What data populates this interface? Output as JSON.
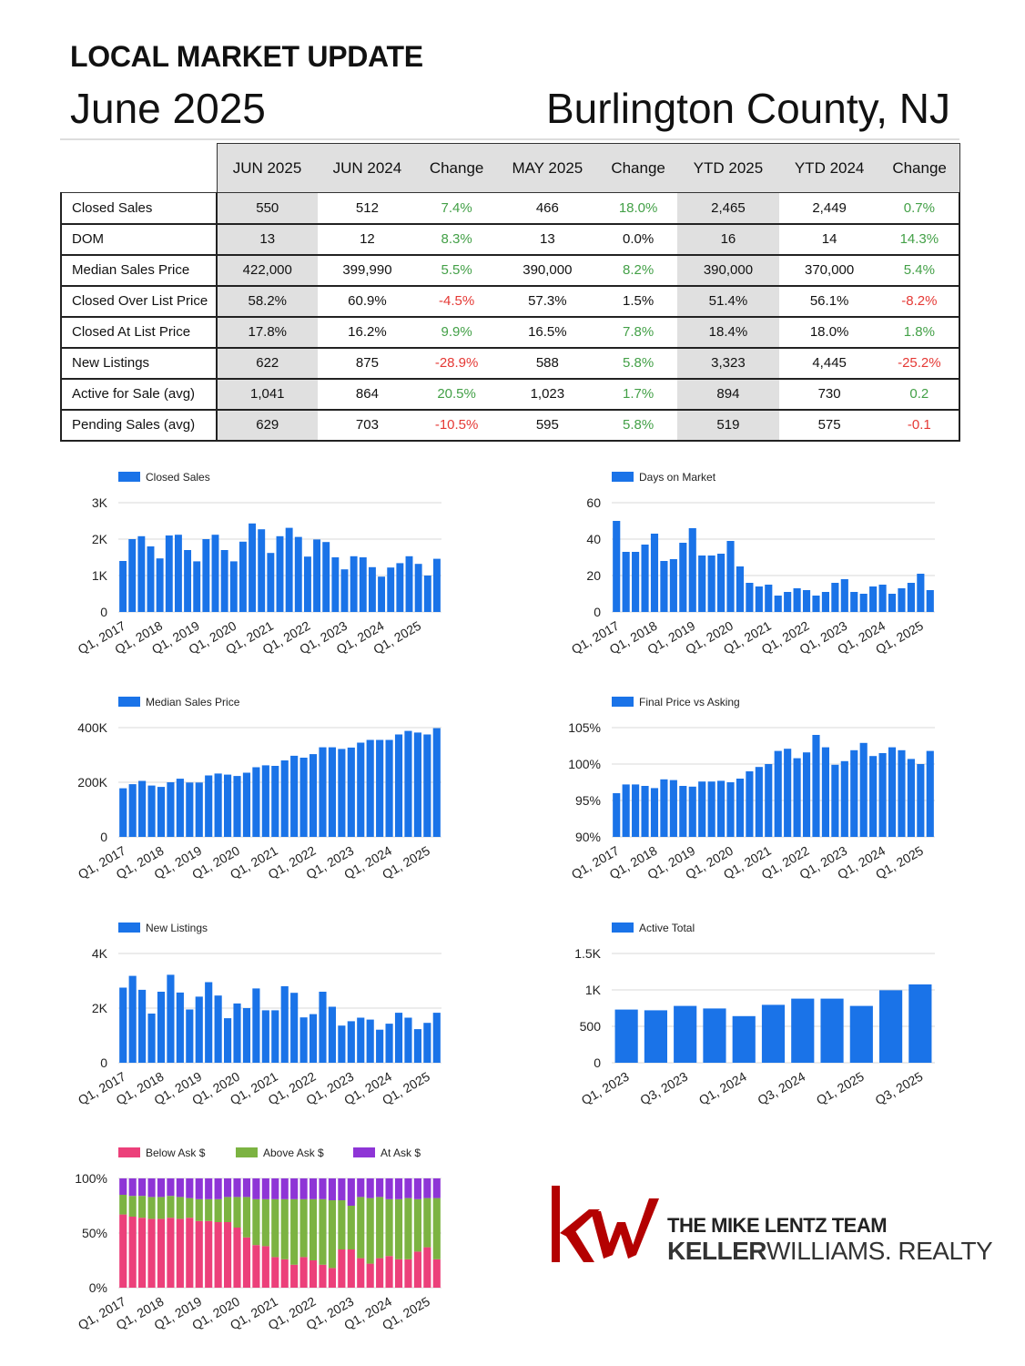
{
  "header": {
    "kicker": "LOCAL MARKET UPDATE",
    "month": "June 2025",
    "area": "Burlington County, NJ"
  },
  "stats_table": {
    "columns": [
      "JUN 2025",
      "JUN 2024",
      "Change",
      "MAY 2025",
      "Change",
      "YTD 2025",
      "YTD 2024",
      "Change"
    ],
    "rows": [
      {
        "label": "Closed Sales",
        "cells": [
          "550",
          "512",
          "7.4%",
          "466",
          "18.0%",
          "2,465",
          "2,449",
          "0.7%"
        ],
        "signs": [
          "",
          "",
          "pos",
          "",
          "pos",
          "",
          "",
          "pos"
        ]
      },
      {
        "label": "DOM",
        "cells": [
          "13",
          "12",
          "8.3%",
          "13",
          "0.0%",
          "16",
          "14",
          "14.3%"
        ],
        "signs": [
          "",
          "",
          "pos",
          "",
          "",
          "",
          "",
          "pos"
        ]
      },
      {
        "label": "Median Sales Price",
        "cells": [
          "422,000",
          "399,990",
          "5.5%",
          "390,000",
          "8.2%",
          "390,000",
          "370,000",
          "5.4%"
        ],
        "signs": [
          "",
          "",
          "pos",
          "",
          "pos",
          "",
          "",
          "pos"
        ]
      },
      {
        "label": "Closed Over List Price",
        "cells": [
          "58.2%",
          "60.9%",
          "-4.5%",
          "57.3%",
          "1.5%",
          "51.4%",
          "56.1%",
          "-8.2%"
        ],
        "signs": [
          "",
          "",
          "neg",
          "",
          "",
          "",
          "",
          "neg"
        ]
      },
      {
        "label": "Closed At List Price",
        "cells": [
          "17.8%",
          "16.2%",
          "9.9%",
          "16.5%",
          "7.8%",
          "18.4%",
          "18.0%",
          "1.8%"
        ],
        "signs": [
          "",
          "",
          "pos",
          "",
          "pos",
          "",
          "",
          "pos"
        ]
      },
      {
        "label": "New Listings",
        "cells": [
          "622",
          "875",
          "-28.9%",
          "588",
          "5.8%",
          "3,323",
          "4,445",
          "-25.2%"
        ],
        "signs": [
          "",
          "",
          "neg",
          "",
          "pos",
          "",
          "",
          "neg"
        ]
      },
      {
        "label": "Active for Sale (avg)",
        "cells": [
          "1,041",
          "864",
          "20.5%",
          "1,023",
          "1.7%",
          "894",
          "730",
          "0.2"
        ],
        "signs": [
          "",
          "",
          "pos",
          "",
          "pos",
          "",
          "",
          "pos"
        ]
      },
      {
        "label": "Pending Sales (avg)",
        "cells": [
          "629",
          "703",
          "-10.5%",
          "595",
          "5.8%",
          "519",
          "575",
          "-0.1"
        ],
        "signs": [
          "",
          "",
          "neg",
          "",
          "pos",
          "",
          "",
          "neg"
        ]
      }
    ],
    "colors": {
      "pos": "#43a047",
      "neg": "#e53935",
      "shade": "#e0e0e0"
    }
  },
  "chart_data": [
    {
      "id": "closed-sales",
      "type": "bar",
      "series": [
        {
          "name": "Closed Sales",
          "color": "#1a73e8",
          "values": [
            1400,
            2000,
            2080,
            1800,
            1470,
            2100,
            2120,
            1700,
            1390,
            2000,
            2120,
            1700,
            1390,
            1930,
            2430,
            2270,
            1620,
            2080,
            2310,
            2060,
            1520,
            1990,
            1920,
            1500,
            1170,
            1530,
            1500,
            1230,
            970,
            1220,
            1340,
            1530,
            1320,
            1000,
            1460
          ]
        }
      ],
      "xtick_labels": [
        "Q1, 2017",
        "Q1, 2018",
        "Q1, 2019",
        "Q1, 2020",
        "Q1, 2021",
        "Q1, 2022",
        "Q1, 2023",
        "Q1, 2024",
        "Q1, 2025"
      ],
      "xtick_every": 4,
      "yticks": [
        "0",
        "1K",
        "2K",
        "3K"
      ],
      "ylim": [
        0,
        3000
      ]
    },
    {
      "id": "days-on-market",
      "type": "bar",
      "series": [
        {
          "name": "Days on Market",
          "color": "#1a73e8",
          "values": [
            50,
            33,
            33,
            37,
            43,
            28,
            29,
            38,
            46,
            31,
            31,
            32,
            39,
            25,
            16,
            14,
            15,
            9,
            11,
            13,
            12,
            9,
            11,
            16,
            18,
            11,
            10,
            14,
            15,
            10,
            13,
            16,
            21,
            12
          ]
        }
      ],
      "xtick_labels": [
        "Q1, 2017",
        "Q1, 2018",
        "Q1, 2019",
        "Q1, 2020",
        "Q1, 2021",
        "Q1, 2022",
        "Q1, 2023",
        "Q1, 2024",
        "Q1, 2025"
      ],
      "xtick_every": 4,
      "yticks": [
        "0",
        "20",
        "40",
        "60"
      ],
      "ylim": [
        0,
        60
      ]
    },
    {
      "id": "median-sales-price",
      "type": "bar",
      "series": [
        {
          "name": "Median Sales Price",
          "color": "#1a73e8",
          "values": [
            178000,
            193000,
            205000,
            188000,
            183000,
            200000,
            213000,
            199000,
            199000,
            225000,
            232000,
            228000,
            223000,
            235000,
            255000,
            262000,
            260000,
            280000,
            297000,
            290000,
            303000,
            328000,
            328000,
            322000,
            327000,
            345000,
            355000,
            355000,
            355000,
            375000,
            388000,
            382000,
            375000,
            398000
          ]
        }
      ],
      "xtick_labels": [
        "Q1, 2017",
        "Q1, 2018",
        "Q1, 2019",
        "Q1, 2020",
        "Q1, 2021",
        "Q1, 2022",
        "Q1, 2023",
        "Q1, 2024",
        "Q1, 2025"
      ],
      "xtick_every": 4,
      "yticks": [
        "0",
        "200K",
        "400K"
      ],
      "ylim": [
        0,
        400000
      ]
    },
    {
      "id": "final-price-vs-asking",
      "type": "bar",
      "series": [
        {
          "name": "Final Price vs Asking",
          "color": "#1a73e8",
          "values": [
            96.0,
            97.2,
            97.2,
            97.0,
            96.7,
            97.9,
            97.8,
            97.0,
            96.9,
            97.6,
            97.6,
            97.7,
            97.5,
            98.0,
            99.0,
            99.6,
            100.0,
            101.8,
            102.1,
            100.8,
            101.6,
            104.0,
            102.3,
            99.9,
            100.4,
            101.9,
            102.9,
            101.1,
            101.5,
            102.3,
            101.9,
            100.7,
            100.0,
            101.8
          ]
        }
      ],
      "xtick_labels": [
        "Q1, 2017",
        "Q1, 2018",
        "Q1, 2019",
        "Q1, 2020",
        "Q1, 2021",
        "Q1, 2022",
        "Q1, 2023",
        "Q1, 2024",
        "Q1, 2025"
      ],
      "xtick_every": 4,
      "yticks": [
        "90%",
        "95%",
        "100%",
        "105%"
      ],
      "ylim": [
        90,
        105
      ]
    },
    {
      "id": "new-listings",
      "type": "bar",
      "series": [
        {
          "name": "New Listings",
          "color": "#1a73e8",
          "values": [
            2750,
            3180,
            2670,
            1800,
            2600,
            3220,
            2570,
            1950,
            2420,
            2950,
            2460,
            1630,
            2170,
            2000,
            2720,
            1920,
            1920,
            2800,
            2560,
            1660,
            1780,
            2600,
            2050,
            1360,
            1520,
            1650,
            1580,
            1210,
            1430,
            1830,
            1650,
            1230,
            1460,
            1830
          ]
        }
      ],
      "xtick_labels": [
        "Q1, 2017",
        "Q1, 2018",
        "Q1, 2019",
        "Q1, 2020",
        "Q1, 2021",
        "Q1, 2022",
        "Q1, 2023",
        "Q1, 2024",
        "Q1, 2025"
      ],
      "xtick_every": 4,
      "yticks": [
        "0",
        "2K",
        "4K"
      ],
      "ylim": [
        0,
        4000
      ]
    },
    {
      "id": "active-total",
      "type": "bar",
      "series": [
        {
          "name": "Active Total",
          "color": "#1a73e8",
          "values": [
            730,
            720,
            780,
            745,
            640,
            795,
            880,
            880,
            780,
            995,
            1075
          ]
        }
      ],
      "xtick_labels": [
        "Q1, 2023",
        "Q3, 2023",
        "Q1, 2024",
        "Q3, 2024",
        "Q1, 2025",
        "Q3, 2025"
      ],
      "xtick_every": 2,
      "yticks": [
        "0",
        "500",
        "1K",
        "1.5K"
      ],
      "ylim": [
        0,
        1500
      ]
    },
    {
      "id": "ask-breakdown",
      "type": "bar",
      "stacked": true,
      "series": [
        {
          "name": "Below Ask $",
          "color": "#ec407a",
          "values": [
            0.67,
            0.65,
            0.64,
            0.63,
            0.63,
            0.64,
            0.63,
            0.64,
            0.61,
            0.61,
            0.6,
            0.6,
            0.55,
            0.46,
            0.39,
            0.38,
            0.28,
            0.26,
            0.21,
            0.28,
            0.25,
            0.21,
            0.18,
            0.35,
            0.35,
            0.27,
            0.22,
            0.27,
            0.29,
            0.26,
            0.26,
            0.33,
            0.37,
            0.26
          ]
        },
        {
          "name": "Above Ask $",
          "color": "#7cb342",
          "values": [
            0.18,
            0.19,
            0.2,
            0.2,
            0.2,
            0.2,
            0.2,
            0.18,
            0.2,
            0.2,
            0.21,
            0.23,
            0.28,
            0.37,
            0.42,
            0.43,
            0.53,
            0.55,
            0.6,
            0.53,
            0.56,
            0.6,
            0.62,
            0.45,
            0.4,
            0.56,
            0.6,
            0.56,
            0.52,
            0.55,
            0.56,
            0.48,
            0.45,
            0.56
          ]
        },
        {
          "name": "At Ask $",
          "color": "#8e35d6",
          "values": [
            0.15,
            0.16,
            0.16,
            0.17,
            0.17,
            0.16,
            0.17,
            0.18,
            0.19,
            0.19,
            0.19,
            0.17,
            0.17,
            0.17,
            0.19,
            0.19,
            0.19,
            0.19,
            0.19,
            0.19,
            0.19,
            0.19,
            0.2,
            0.2,
            0.25,
            0.17,
            0.18,
            0.17,
            0.19,
            0.19,
            0.18,
            0.19,
            0.18,
            0.18
          ]
        }
      ],
      "xtick_labels": [
        "Q1, 2017",
        "Q1, 2018",
        "Q1, 2019",
        "Q1, 2020",
        "Q1, 2021",
        "Q1, 2022",
        "Q1, 2023",
        "Q1, 2024",
        "Q1, 2025"
      ],
      "xtick_every": 4,
      "yticks": [
        "0%",
        "50%",
        "100%"
      ],
      "ylim": [
        0,
        1
      ]
    }
  ],
  "logo": {
    "mark": "kw",
    "team": "THE MIKE LENTZ TEAM",
    "brand_bold": "KELLER",
    "brand_rest": "WILLIAMS",
    "brand_suffix": ". REALTY",
    "color": "#b40101"
  }
}
